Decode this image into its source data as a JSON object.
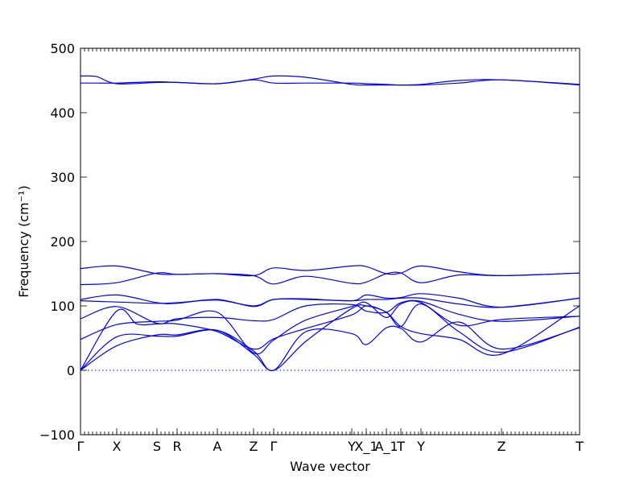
{
  "chart_data": {
    "type": "line",
    "title": "",
    "xlabel": "Wave vector",
    "ylabel": "Frequency (cm⁻¹)",
    "ylim": [
      -100,
      500
    ],
    "yticks": [
      -100,
      0,
      100,
      200,
      300,
      400,
      500
    ],
    "xlim": [
      0,
      620
    ],
    "grid": false,
    "legend": "none",
    "color": "#0000ff",
    "high_symmetry_points": [
      {
        "label": "Γ",
        "x": 0
      },
      {
        "label": "X",
        "x": 45
      },
      {
        "label": "S",
        "x": 95
      },
      {
        "label": "R",
        "x": 120
      },
      {
        "label": "A",
        "x": 170
      },
      {
        "label": "Z",
        "x": 215
      },
      {
        "label": "Γ",
        "x": 240
      },
      {
        "label": "Y",
        "x": 337
      },
      {
        "label": "X_1",
        "x": 355
      },
      {
        "label": "A_1",
        "x": 380
      },
      {
        "label": "T",
        "x": 398
      },
      {
        "label": "Y",
        "x": 423
      },
      {
        "label": "Z",
        "x": 523
      },
      {
        "label": "T",
        "x": 620
      }
    ],
    "series": [
      {
        "x": [
          0,
          20,
          45,
          95,
          120,
          170,
          215,
          240,
          280,
          337,
          355,
          380,
          398,
          423,
          470,
          523,
          620
        ],
        "values": [
          457,
          456,
          445,
          447,
          447,
          445,
          452,
          457,
          455,
          444,
          443,
          443,
          443,
          443,
          446,
          451,
          443
        ]
      },
      {
        "x": [
          0,
          20,
          45,
          95,
          120,
          170,
          215,
          240,
          280,
          337,
          355,
          380,
          398,
          423,
          470,
          523,
          620
        ],
        "values": [
          446,
          446,
          446,
          448,
          447,
          445,
          451,
          446,
          446,
          446,
          445,
          444,
          443,
          444,
          450,
          451,
          444
        ]
      },
      {
        "x": [
          0,
          45,
          95,
          120,
          170,
          215,
          240,
          280,
          337,
          355,
          380,
          398,
          423,
          470,
          523,
          620
        ],
        "values": [
          158,
          162,
          150,
          149,
          150,
          147,
          159,
          155,
          162,
          161,
          150,
          151,
          162,
          153,
          147,
          151
        ]
      },
      {
        "x": [
          0,
          45,
          95,
          120,
          170,
          215,
          240,
          280,
          337,
          355,
          380,
          398,
          423,
          470,
          523,
          620
        ],
        "values": [
          133,
          136,
          151,
          149,
          150,
          147,
          134,
          146,
          135,
          137,
          150,
          151,
          136,
          148,
          147,
          151
        ]
      },
      {
        "x": [
          0,
          45,
          95,
          120,
          170,
          215,
          240,
          280,
          337,
          355,
          380,
          398,
          423,
          470,
          523,
          620
        ],
        "values": [
          110,
          117,
          105,
          104,
          110,
          99,
          110,
          111,
          108,
          117,
          112,
          113,
          119,
          112,
          98,
          112
        ]
      },
      {
        "x": [
          0,
          45,
          95,
          120,
          170,
          215,
          240,
          280,
          337,
          355,
          380,
          398,
          423,
          470,
          523,
          620
        ],
        "values": [
          108,
          106,
          104,
          105,
          109,
          100,
          110,
          110,
          108,
          110,
          110,
          112,
          112,
          103,
          98,
          112
        ]
      },
      {
        "x": [
          0,
          45,
          95,
          120,
          170,
          215,
          240,
          280,
          337,
          355,
          380,
          398,
          423,
          470,
          523,
          620
        ],
        "values": [
          80,
          99,
          73,
          80,
          82,
          77,
          79,
          100,
          102,
          92,
          90,
          105,
          107,
          87,
          76,
          84
        ]
      },
      {
        "x": [
          0,
          45,
          95,
          120,
          170,
          215,
          240,
          280,
          337,
          355,
          380,
          398,
          423,
          470,
          523,
          620
        ],
        "values": [
          48,
          71,
          76,
          78,
          90,
          27,
          47,
          78,
          99,
          105,
          82,
          103,
          105,
          70,
          79,
          84
        ]
      },
      {
        "x": [
          0,
          45,
          70,
          95,
          120,
          170,
          215,
          240,
          280,
          337,
          355,
          380,
          398,
          423,
          470,
          523,
          620
        ],
        "values": [
          0,
          92,
          72,
          72,
          72,
          60,
          33,
          49,
          65,
          86,
          100,
          90,
          68,
          57,
          48,
          25,
          100
        ]
      },
      {
        "x": [
          0,
          45,
          95,
          120,
          170,
          215,
          240,
          280,
          337,
          355,
          380,
          398,
          423,
          470,
          523,
          620
        ],
        "values": [
          0,
          52,
          53,
          53,
          62,
          30,
          0,
          60,
          57,
          40,
          66,
          65,
          44,
          75,
          33,
          66
        ]
      },
      {
        "x": [
          0,
          45,
          95,
          120,
          170,
          215,
          240,
          280,
          337,
          355,
          380,
          398,
          423,
          470,
          523,
          620
        ],
        "values": [
          0,
          38,
          55,
          55,
          62,
          25,
          0,
          45,
          96,
          100,
          90,
          68,
          103,
          60,
          28,
          67
        ]
      }
    ]
  }
}
